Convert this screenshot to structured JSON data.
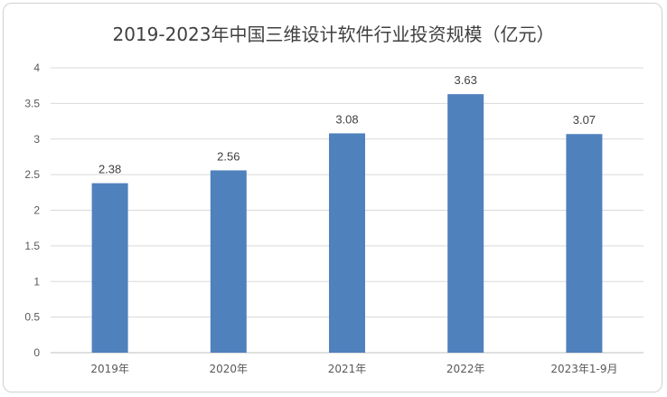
{
  "chart_data": {
    "type": "bar",
    "title": "2019-2023年中国三维设计软件行业投资规模（亿元）",
    "categories": [
      "2019年",
      "2020年",
      "2021年",
      "2022年",
      "2023年1-9月"
    ],
    "values": [
      2.38,
      2.56,
      3.08,
      3.63,
      3.07
    ],
    "data_labels": [
      "2.38",
      "2.56",
      "3.08",
      "3.63",
      "3.07"
    ],
    "ylim": [
      0,
      4
    ],
    "yticks": [
      "0",
      "0.5",
      "1",
      "1.5",
      "2",
      "2.5",
      "3",
      "3.5",
      "4"
    ],
    "xlabel": "",
    "ylabel": "",
    "grid": true,
    "bar_color": "#4f81bd",
    "grid_color": "#d9d9d9"
  }
}
